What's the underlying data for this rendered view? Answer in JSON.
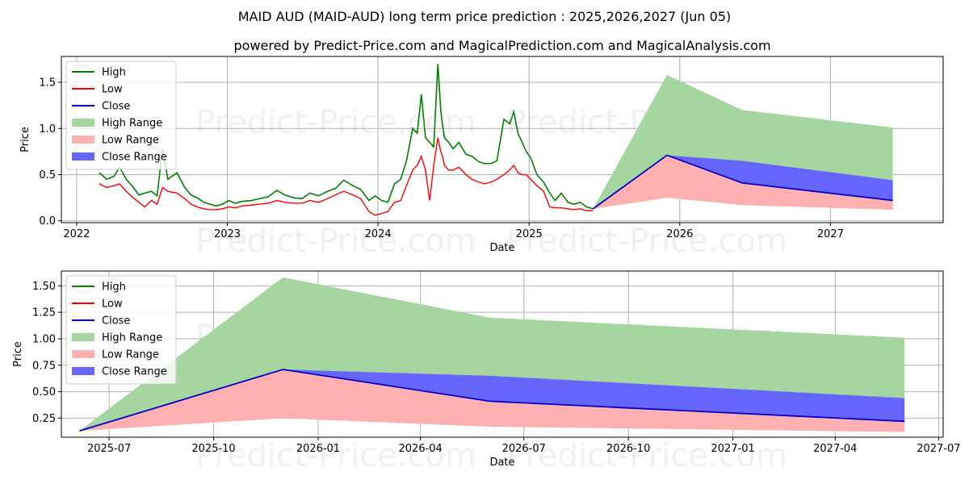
{
  "title_line1": "MAID AUD (MAID-AUD) long term price prediction : 2025,2026,2027 (Jun 05)",
  "title_line2": "powered by Predict-Price.com and MagicalPrediction.com and MagicalAnalysis.com",
  "watermark": "Predict-Price.com",
  "colors": {
    "high": "#008000",
    "low": "#ff0000",
    "close": "#0000cc",
    "high_range": "#a5d6a0",
    "low_range": "#ffb0b0",
    "close_range": "#6666ff"
  },
  "chart_data": [
    {
      "type": "line",
      "xlabel": "Date",
      "ylabel": "Price",
      "xlim": [
        "2021-11-25",
        "2027-10-01"
      ],
      "ylim": [
        -0.02,
        1.78
      ],
      "x_ticks": [
        "2022-01-01",
        "2023-01-01",
        "2024-01-01",
        "2025-01-01",
        "2026-01-01",
        "2027-01-01"
      ],
      "x_tick_labels": [
        "2022",
        "2023",
        "2024",
        "2025",
        "2026",
        "2027"
      ],
      "y_ticks": [
        0.0,
        0.5,
        1.0,
        1.5
      ],
      "y_tick_labels": [
        "0.0",
        "0.5",
        "1.0",
        "1.5"
      ],
      "grid": true,
      "legend": "upper left",
      "legend_entries": [
        "High",
        "Low",
        "Close",
        "High Range",
        "Low Range",
        "Close Range"
      ],
      "history": {
        "dates": [
          "2022-02-25",
          "2022-03-15",
          "2022-04-01",
          "2022-04-15",
          "2022-05-01",
          "2022-05-15",
          "2022-06-01",
          "2022-06-15",
          "2022-07-01",
          "2022-07-15",
          "2022-07-28",
          "2022-08-10",
          "2022-09-01",
          "2022-09-20",
          "2022-10-05",
          "2022-10-20",
          "2022-11-05",
          "2022-11-20",
          "2022-12-05",
          "2022-12-20",
          "2023-01-05",
          "2023-01-20",
          "2023-02-05",
          "2023-03-01",
          "2023-03-20",
          "2023-04-10",
          "2023-05-01",
          "2023-05-20",
          "2023-06-10",
          "2023-07-01",
          "2023-07-20",
          "2023-08-10",
          "2023-09-01",
          "2023-09-20",
          "2023-10-10",
          "2023-11-01",
          "2023-11-20",
          "2023-12-10",
          "2023-12-25",
          "2024-01-10",
          "2024-01-25",
          "2024-02-10",
          "2024-02-25",
          "2024-03-10",
          "2024-03-25",
          "2024-04-05",
          "2024-04-15",
          "2024-04-25",
          "2024-05-05",
          "2024-05-15",
          "2024-05-25",
          "2024-06-01",
          "2024-06-05",
          "2024-06-10",
          "2024-06-20",
          "2024-07-01",
          "2024-07-15",
          "2024-08-01",
          "2024-08-15",
          "2024-09-01",
          "2024-09-15",
          "2024-10-01",
          "2024-10-15",
          "2024-11-01",
          "2024-11-15",
          "2024-11-25",
          "2024-12-05",
          "2024-12-15",
          "2024-12-25",
          "2025-01-05",
          "2025-01-20",
          "2025-02-05",
          "2025-02-20",
          "2025-03-05",
          "2025-03-20",
          "2025-04-05",
          "2025-04-20",
          "2025-05-05",
          "2025-05-20",
          "2025-06-05"
        ],
        "high": [
          0.52,
          0.45,
          0.48,
          0.58,
          0.45,
          0.38,
          0.28,
          0.3,
          0.32,
          0.27,
          0.78,
          0.45,
          0.52,
          0.36,
          0.28,
          0.25,
          0.2,
          0.18,
          0.16,
          0.18,
          0.22,
          0.19,
          0.21,
          0.22,
          0.24,
          0.26,
          0.33,
          0.28,
          0.25,
          0.24,
          0.3,
          0.27,
          0.32,
          0.35,
          0.44,
          0.38,
          0.34,
          0.22,
          0.27,
          0.22,
          0.2,
          0.4,
          0.45,
          0.65,
          1.0,
          0.95,
          1.37,
          0.9,
          0.85,
          0.8,
          1.7,
          1.2,
          1.05,
          0.9,
          0.85,
          0.78,
          0.85,
          0.72,
          0.7,
          0.64,
          0.62,
          0.62,
          0.65,
          1.1,
          1.05,
          1.18,
          0.95,
          0.85,
          0.75,
          0.68,
          0.5,
          0.42,
          0.3,
          0.22,
          0.3,
          0.2,
          0.18,
          0.2,
          0.15,
          0.13
        ],
        "low": [
          0.4,
          0.36,
          0.38,
          0.4,
          0.32,
          0.26,
          0.2,
          0.15,
          0.22,
          0.18,
          0.36,
          0.32,
          0.3,
          0.24,
          0.18,
          0.15,
          0.13,
          0.12,
          0.12,
          0.13,
          0.15,
          0.14,
          0.16,
          0.17,
          0.18,
          0.19,
          0.22,
          0.2,
          0.19,
          0.19,
          0.22,
          0.2,
          0.24,
          0.28,
          0.32,
          0.28,
          0.24,
          0.1,
          0.06,
          0.08,
          0.1,
          0.2,
          0.22,
          0.38,
          0.55,
          0.6,
          0.7,
          0.55,
          0.22,
          0.6,
          0.9,
          0.75,
          0.7,
          0.6,
          0.55,
          0.55,
          0.58,
          0.5,
          0.45,
          0.42,
          0.4,
          0.42,
          0.45,
          0.5,
          0.55,
          0.6,
          0.52,
          0.5,
          0.5,
          0.45,
          0.38,
          0.32,
          0.15,
          0.14,
          0.14,
          0.13,
          0.12,
          0.13,
          0.11,
          0.11
        ]
      },
      "forecast": {
        "dates": [
          "2025-06-05",
          "2025-12-01",
          "2026-06-01",
          "2027-06-01"
        ],
        "close": [
          0.13,
          0.71,
          0.41,
          0.22
        ],
        "high_range_top": [
          0.13,
          1.58,
          1.2,
          1.01
        ],
        "low_range_bottom": [
          0.13,
          0.25,
          0.17,
          0.12
        ],
        "close_range_top": [
          0.13,
          0.71,
          0.65,
          0.44
        ]
      }
    },
    {
      "type": "area",
      "xlabel": "Date",
      "ylabel": "Price",
      "xlim": [
        "2025-05-20",
        "2027-07-05"
      ],
      "ylim": [
        0.07,
        1.64
      ],
      "x_ticks": [
        "2025-07-01",
        "2025-10-01",
        "2026-01-01",
        "2026-04-01",
        "2026-07-01",
        "2026-10-01",
        "2027-01-01",
        "2027-04-01",
        "2027-07-01"
      ],
      "x_tick_labels": [
        "2025-07",
        "2025-10",
        "2026-01",
        "2026-04",
        "2026-07",
        "2026-10",
        "2027-01",
        "2027-04",
        "2027-07"
      ],
      "y_ticks": [
        0.25,
        0.5,
        0.75,
        1.0,
        1.25,
        1.5
      ],
      "y_tick_labels": [
        "0.25",
        "0.50",
        "0.75",
        "1.00",
        "1.25",
        "1.50"
      ],
      "grid": true,
      "legend": "upper left",
      "legend_entries": [
        "High",
        "Low",
        "Close",
        "High Range",
        "Low Range",
        "Close Range"
      ],
      "forecast": {
        "dates": [
          "2025-06-05",
          "2025-12-01",
          "2026-06-01",
          "2027-06-01"
        ],
        "close": [
          0.13,
          0.71,
          0.41,
          0.22
        ],
        "high_range_top": [
          0.13,
          1.58,
          1.2,
          1.01
        ],
        "low_range_bottom": [
          0.13,
          0.25,
          0.17,
          0.12
        ],
        "close_range_top": [
          0.13,
          0.71,
          0.65,
          0.44
        ]
      }
    }
  ]
}
